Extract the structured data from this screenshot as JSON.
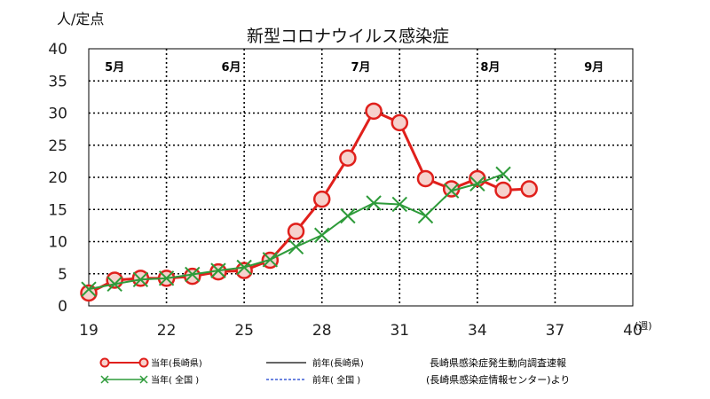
{
  "chart_data": {
    "type": "line",
    "title": "新型コロナウイルス感染症",
    "ylabel": "人/定点",
    "xlabel_suffix": "(週)",
    "x_ticks": [
      "19",
      "22",
      "25",
      "28",
      "31",
      "34",
      "37",
      "40"
    ],
    "y_ticks": [
      "0",
      "5",
      "10",
      "15",
      "20",
      "25",
      "30",
      "35",
      "40"
    ],
    "xlim": [
      19,
      40
    ],
    "ylim": [
      0,
      40
    ],
    "grid": true,
    "months": [
      {
        "label": "5月",
        "x": 20
      },
      {
        "label": "6月",
        "x": 24.5
      },
      {
        "label": "7月",
        "x": 29.5
      },
      {
        "label": "8月",
        "x": 34.5
      },
      {
        "label": "9月",
        "x": 38.5
      }
    ],
    "series": [
      {
        "name": "当年(長崎県)",
        "color": "#e0201c",
        "marker": "circle",
        "x": [
          19,
          20,
          21,
          22,
          23,
          24,
          25,
          26,
          27,
          28,
          29,
          30,
          31,
          32,
          33,
          34,
          35,
          36
        ],
        "values": [
          2.0,
          4.0,
          4.3,
          4.3,
          4.6,
          5.3,
          5.5,
          7.1,
          11.6,
          16.6,
          23.0,
          30.3,
          28.5,
          19.8,
          18.2,
          19.8,
          18.0,
          18.2
        ]
      },
      {
        "name": "当年( 全国 )",
        "color": "#2e9b3a",
        "marker": "x",
        "x": [
          19,
          20,
          21,
          22,
          23,
          24,
          25,
          26,
          27,
          28,
          29,
          30,
          31,
          32,
          33,
          34,
          35
        ],
        "values": [
          2.6,
          3.4,
          4.1,
          4.3,
          4.9,
          5.5,
          6.0,
          7.2,
          9.2,
          11.0,
          14.0,
          16.0,
          15.8,
          14.0,
          17.9,
          19.0,
          20.5
        ]
      }
    ],
    "legend": {
      "placement": "bottom",
      "entries": [
        {
          "label": "当年(長崎県)",
          "style": "red-circle"
        },
        {
          "label": "前年(長崎県)",
          "style": "black-solid"
        },
        {
          "label": "当年( 全国 )",
          "style": "green-x"
        },
        {
          "label": "前年( 全国 )",
          "style": "blue-dashed"
        }
      ]
    },
    "source": [
      "長崎県感染症発生動向調査速報",
      "(長崎県感染症情報センター)より"
    ]
  }
}
